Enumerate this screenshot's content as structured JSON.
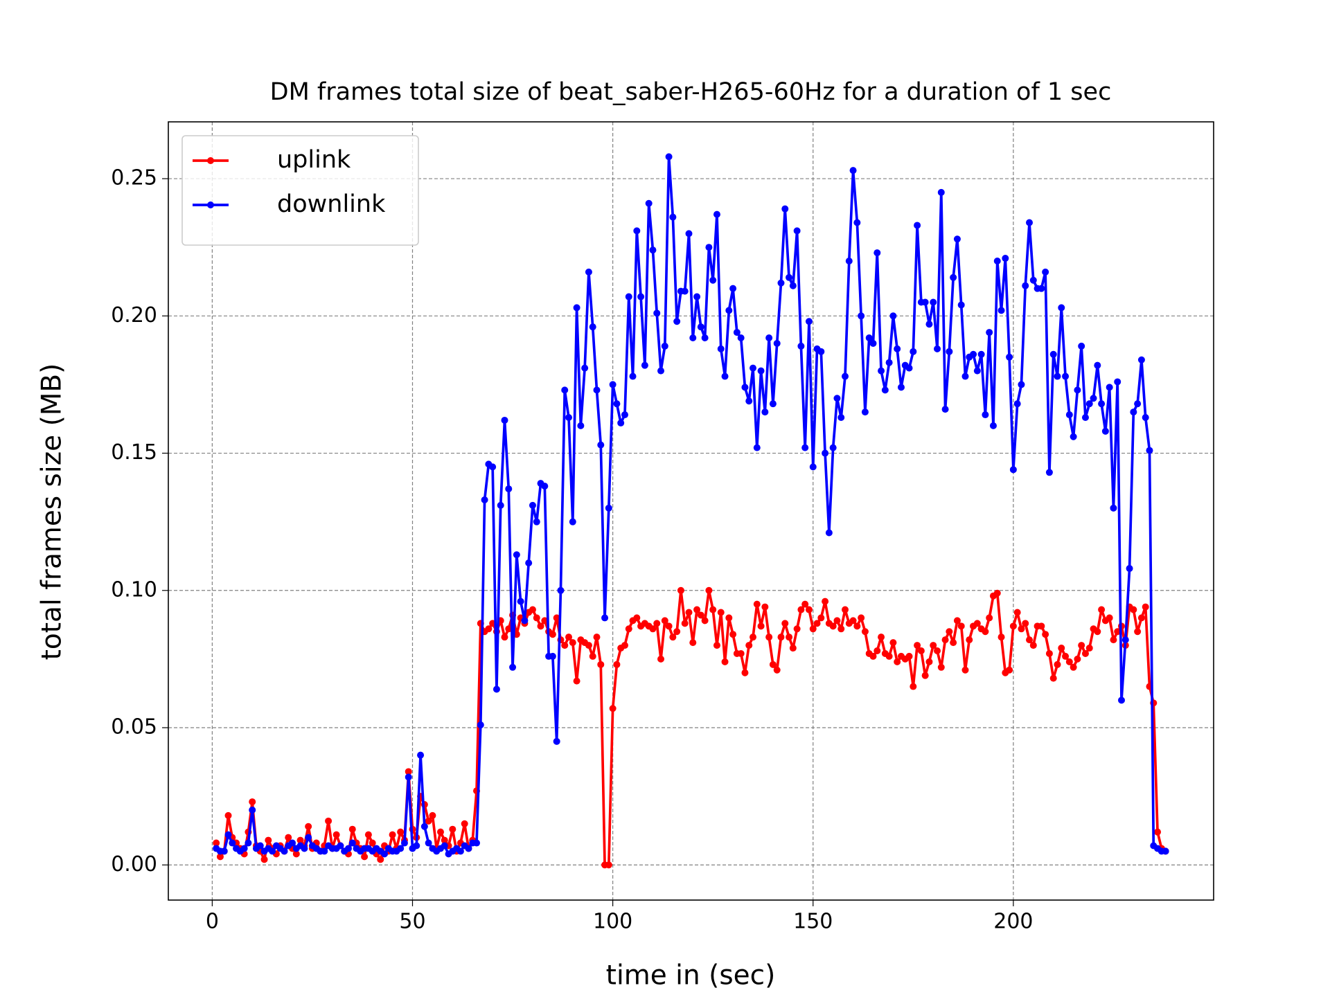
{
  "chart_data": {
    "type": "line",
    "title": "DM frames total size of beat_saber-H265-60Hz for a duration of 1 sec",
    "x_label": "time in (sec)",
    "y_label": "total frames size (MB)",
    "x": [
      1,
      2,
      3,
      4,
      5,
      6,
      7,
      8,
      9,
      10,
      11,
      12,
      13,
      14,
      15,
      16,
      17,
      18,
      19,
      20,
      21,
      22,
      23,
      24,
      25,
      26,
      27,
      28,
      29,
      30,
      31,
      32,
      33,
      34,
      35,
      36,
      37,
      38,
      39,
      40,
      41,
      42,
      43,
      44,
      45,
      46,
      47,
      48,
      49,
      50,
      51,
      52,
      53,
      54,
      55,
      56,
      57,
      58,
      59,
      60,
      61,
      62,
      63,
      64,
      65,
      66,
      67,
      68,
      69,
      70,
      71,
      72,
      73,
      74,
      75,
      76,
      77,
      78,
      79,
      80,
      81,
      82,
      83,
      84,
      85,
      86,
      87,
      88,
      89,
      90,
      91,
      92,
      93,
      94,
      95,
      96,
      97,
      98,
      99,
      100,
      101,
      102,
      103,
      104,
      105,
      106,
      107,
      108,
      109,
      110,
      111,
      112,
      113,
      114,
      115,
      116,
      117,
      118,
      119,
      120,
      121,
      122,
      123,
      124,
      125,
      126,
      127,
      128,
      129,
      130,
      131,
      132,
      133,
      134,
      135,
      136,
      137,
      138,
      139,
      140,
      141,
      142,
      143,
      144,
      145,
      146,
      147,
      148,
      149,
      150,
      151,
      152,
      153,
      154,
      155,
      156,
      157,
      158,
      159,
      160,
      161,
      162,
      163,
      164,
      165,
      166,
      167,
      168,
      169,
      170,
      171,
      172,
      173,
      174,
      175,
      176,
      177,
      178,
      179,
      180,
      181,
      182,
      183,
      184,
      185,
      186,
      187,
      188,
      189,
      190,
      191,
      192,
      193,
      194,
      195,
      196,
      197,
      198,
      199,
      200,
      201,
      202,
      203,
      204,
      205,
      206,
      207,
      208,
      209,
      210,
      211,
      212,
      213,
      214,
      215,
      216,
      217,
      218,
      219,
      220,
      221,
      222,
      223,
      224,
      225,
      226,
      227,
      228,
      229,
      230,
      231,
      232,
      233,
      234,
      235,
      236,
      237,
      238
    ],
    "series": [
      {
        "name": "uplink",
        "color": "#ff0000",
        "values": [
          0.008,
          0.003,
          0.005,
          0.018,
          0.01,
          0.008,
          0.006,
          0.004,
          0.012,
          0.023,
          0.007,
          0.005,
          0.002,
          0.009,
          0.006,
          0.004,
          0.007,
          0.005,
          0.01,
          0.006,
          0.004,
          0.009,
          0.007,
          0.014,
          0.006,
          0.008,
          0.005,
          0.007,
          0.016,
          0.006,
          0.011,
          0.007,
          0.005,
          0.004,
          0.013,
          0.008,
          0.006,
          0.003,
          0.011,
          0.008,
          0.004,
          0.002,
          0.007,
          0.005,
          0.011,
          0.006,
          0.012,
          0.009,
          0.034,
          0.013,
          0.01,
          0.025,
          0.022,
          0.016,
          0.018,
          0.006,
          0.012,
          0.009,
          0.007,
          0.013,
          0.005,
          0.008,
          0.015,
          0.006,
          0.009,
          0.027,
          0.088,
          0.085,
          0.086,
          0.088,
          0.085,
          0.089,
          0.083,
          0.086,
          0.091,
          0.084,
          0.09,
          0.088,
          0.092,
          0.093,
          0.09,
          0.087,
          0.089,
          0.085,
          0.084,
          0.09,
          0.082,
          0.08,
          0.083,
          0.081,
          0.067,
          0.082,
          0.081,
          0.08,
          0.076,
          0.083,
          0.073,
          0.0,
          0.0,
          0.057,
          0.073,
          0.079,
          0.08,
          0.086,
          0.089,
          0.09,
          0.087,
          0.088,
          0.087,
          0.086,
          0.088,
          0.075,
          0.089,
          0.087,
          0.083,
          0.085,
          0.1,
          0.088,
          0.092,
          0.081,
          0.093,
          0.091,
          0.089,
          0.1,
          0.093,
          0.08,
          0.092,
          0.074,
          0.09,
          0.084,
          0.077,
          0.077,
          0.07,
          0.08,
          0.083,
          0.095,
          0.087,
          0.094,
          0.083,
          0.073,
          0.071,
          0.083,
          0.088,
          0.083,
          0.079,
          0.086,
          0.093,
          0.095,
          0.093,
          0.086,
          0.088,
          0.09,
          0.096,
          0.088,
          0.087,
          0.089,
          0.086,
          0.093,
          0.088,
          0.089,
          0.087,
          0.09,
          0.085,
          0.077,
          0.076,
          0.078,
          0.083,
          0.077,
          0.076,
          0.081,
          0.074,
          0.076,
          0.075,
          0.076,
          0.065,
          0.08,
          0.078,
          0.069,
          0.074,
          0.08,
          0.078,
          0.072,
          0.082,
          0.085,
          0.081,
          0.089,
          0.087,
          0.071,
          0.082,
          0.087,
          0.088,
          0.086,
          0.085,
          0.09,
          0.098,
          0.099,
          0.083,
          0.07,
          0.071,
          0.087,
          0.092,
          0.086,
          0.088,
          0.082,
          0.08,
          0.087,
          0.087,
          0.084,
          0.077,
          0.068,
          0.073,
          0.079,
          0.076,
          0.074,
          0.072,
          0.075,
          0.08,
          0.077,
          0.079,
          0.086,
          0.085,
          0.093,
          0.089,
          0.09,
          0.082,
          0.085,
          0.087,
          0.08,
          0.094,
          0.093,
          0.085,
          0.09,
          0.094,
          0.065,
          0.059,
          0.012,
          0.006,
          0.005
        ]
      },
      {
        "name": "downlink",
        "color": "#0000ff",
        "values": [
          0.006,
          0.005,
          0.005,
          0.011,
          0.008,
          0.006,
          0.005,
          0.006,
          0.008,
          0.02,
          0.006,
          0.007,
          0.005,
          0.006,
          0.005,
          0.007,
          0.006,
          0.005,
          0.007,
          0.008,
          0.006,
          0.007,
          0.006,
          0.01,
          0.007,
          0.006,
          0.005,
          0.005,
          0.007,
          0.006,
          0.006,
          0.007,
          0.005,
          0.006,
          0.008,
          0.006,
          0.005,
          0.006,
          0.006,
          0.005,
          0.006,
          0.005,
          0.004,
          0.006,
          0.005,
          0.005,
          0.006,
          0.008,
          0.032,
          0.006,
          0.007,
          0.04,
          0.014,
          0.008,
          0.006,
          0.005,
          0.006,
          0.007,
          0.004,
          0.005,
          0.006,
          0.005,
          0.007,
          0.006,
          0.008,
          0.008,
          0.051,
          0.133,
          0.146,
          0.145,
          0.064,
          0.131,
          0.162,
          0.137,
          0.072,
          0.113,
          0.096,
          0.089,
          0.11,
          0.131,
          0.125,
          0.139,
          0.138,
          0.076,
          0.076,
          0.045,
          0.1,
          0.173,
          0.163,
          0.125,
          0.203,
          0.16,
          0.181,
          0.216,
          0.196,
          0.173,
          0.153,
          0.09,
          0.13,
          0.175,
          0.168,
          0.161,
          0.164,
          0.207,
          0.178,
          0.231,
          0.207,
          0.182,
          0.241,
          0.224,
          0.201,
          0.18,
          0.189,
          0.258,
          0.236,
          0.198,
          0.209,
          0.209,
          0.23,
          0.192,
          0.207,
          0.196,
          0.192,
          0.225,
          0.213,
          0.237,
          0.188,
          0.178,
          0.202,
          0.21,
          0.194,
          0.192,
          0.174,
          0.169,
          0.181,
          0.152,
          0.18,
          0.165,
          0.192,
          0.168,
          0.19,
          0.212,
          0.239,
          0.214,
          0.211,
          0.231,
          0.189,
          0.152,
          0.198,
          0.145,
          0.188,
          0.187,
          0.15,
          0.121,
          0.152,
          0.17,
          0.163,
          0.178,
          0.22,
          0.253,
          0.234,
          0.2,
          0.165,
          0.192,
          0.19,
          0.223,
          0.18,
          0.173,
          0.183,
          0.2,
          0.188,
          0.174,
          0.182,
          0.181,
          0.187,
          0.233,
          0.205,
          0.205,
          0.197,
          0.205,
          0.188,
          0.245,
          0.166,
          0.187,
          0.214,
          0.228,
          0.204,
          0.178,
          0.185,
          0.186,
          0.18,
          0.186,
          0.164,
          0.194,
          0.16,
          0.22,
          0.202,
          0.221,
          0.185,
          0.144,
          0.168,
          0.175,
          0.211,
          0.234,
          0.213,
          0.21,
          0.21,
          0.216,
          0.143,
          0.186,
          0.178,
          0.203,
          0.178,
          0.164,
          0.156,
          0.173,
          0.189,
          0.163,
          0.168,
          0.17,
          0.182,
          0.168,
          0.158,
          0.174,
          0.13,
          0.176,
          0.06,
          0.082,
          0.108,
          0.165,
          0.168,
          0.184,
          0.163,
          0.151,
          0.007,
          0.006,
          0.005,
          0.005
        ]
      }
    ],
    "xlim": [
      -10.96,
      250.0
    ],
    "ylim": [
      -0.0128,
      0.2707
    ],
    "xticks": [
      0,
      50,
      100,
      150,
      200
    ],
    "yticks": [
      {
        "value": 0,
        "label": "0.00"
      },
      {
        "value": 0.05,
        "label": "0.05"
      },
      {
        "value": 0.1,
        "label": "0.10"
      },
      {
        "value": 0.15,
        "label": "0.15"
      },
      {
        "value": 0.2,
        "label": "0.20"
      },
      {
        "value": 0.25,
        "label": "0.25"
      }
    ],
    "grid": true,
    "legend": "upper-left"
  }
}
